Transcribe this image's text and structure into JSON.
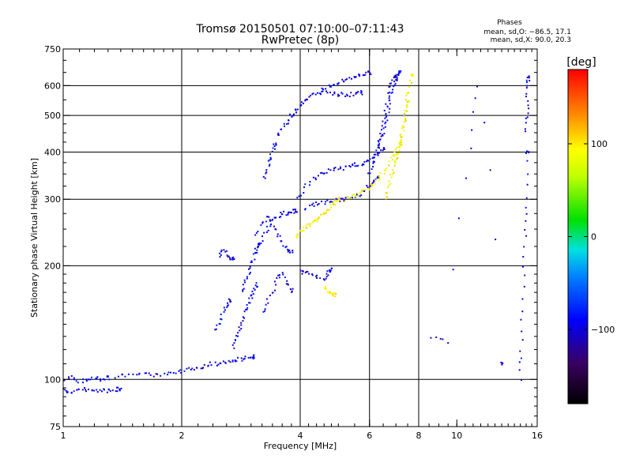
{
  "chart_data": {
    "type": "scatter",
    "title": "Tromsø 20150501 07:10:00–07:11:43",
    "subtitle": "RwPretec (8p)",
    "xlabel": "Frequency [MHz]",
    "ylabel": "Stationary phase Virtual Height [km]",
    "x_scale": "log",
    "y_scale": "log",
    "xlim": [
      1,
      16
    ],
    "ylim": [
      75,
      750
    ],
    "x_ticks": [
      1,
      2,
      4,
      6,
      8,
      10,
      16
    ],
    "x_tick_labels": [
      "1",
      "2",
      "4",
      "6",
      "8",
      "10",
      "16"
    ],
    "y_ticks": [
      75,
      100,
      200,
      300,
      400,
      500,
      600,
      750
    ],
    "y_tick_labels": [
      "75",
      "100",
      "200",
      "300",
      "400",
      "500",
      "600",
      "750"
    ],
    "x_gridlines": [
      2,
      4,
      6,
      8
    ],
    "y_gridlines": [
      100,
      200,
      300,
      400,
      500,
      600
    ],
    "stats": {
      "header": "Phases",
      "line1": "mean, sd,O: −86.5, 17.1",
      "line2": "mean, sd,X:  90.0, 20.3"
    },
    "colorbar": {
      "label": "[deg]",
      "range": [
        -180,
        180
      ],
      "tick_values": [
        100,
        0,
        -100
      ],
      "tick_labels": [
        "100",
        "0",
        "−100"
      ]
    },
    "series": [
      {
        "mode": "O",
        "phase_deg": -95,
        "traces": [
          {
            "f": [
              1.0,
              1.02,
              1.05,
              1.1,
              1.15,
              1.2,
              1.25,
              1.3,
              1.35,
              1.4
            ],
            "h": [
              94,
              93,
              93,
              94,
              94,
              93,
              94,
              93,
              94,
              94
            ]
          },
          {
            "f": [
              1.0,
              1.05,
              1.1,
              1.15,
              1.2,
              1.25,
              1.3
            ],
            "h": [
              100,
              101,
              99,
              100,
              101,
              100,
              101
            ]
          },
          {
            "f": [
              1.35,
              1.45,
              1.55,
              1.65,
              1.75,
              1.85,
              1.95,
              2.05,
              2.15,
              2.25,
              2.35,
              2.45,
              2.55,
              2.65,
              2.75,
              2.85,
              2.95,
              3.05
            ],
            "h": [
              102,
              102,
              103,
              103,
              103,
              104,
              105,
              106,
              107,
              108,
              110,
              110,
              111,
              112,
              113,
              113,
              114,
              115
            ]
          },
          {
            "f": [
              2.45,
              2.5,
              2.55,
              2.6,
              2.65
            ],
            "h": [
              135,
              140,
              150,
              158,
              162
            ]
          },
          {
            "f": [
              2.7,
              2.75,
              2.8,
              2.85,
              2.9,
              2.95,
              3.0,
              3.05,
              3.1
            ],
            "h": [
              122,
              128,
              135,
              140,
              150,
              158,
              165,
              172,
              178
            ]
          },
          {
            "f": [
              2.85,
              2.9,
              2.95,
              3.0,
              3.05,
              3.1,
              3.15
            ],
            "h": [
              170,
              180,
              190,
              200,
              210,
              220,
              230
            ]
          },
          {
            "f": [
              2.5,
              2.55,
              2.6,
              2.65,
              2.7
            ],
            "h": [
              212,
              220,
              215,
              208,
              210
            ]
          },
          {
            "f": [
              3.2,
              3.3,
              3.4,
              3.5,
              3.6,
              3.7,
              3.8
            ],
            "h": [
              150,
              160,
              170,
              185,
              190,
              180,
              172
            ]
          },
          {
            "f": [
              3.1,
              3.2,
              3.3,
              3.4,
              3.5,
              3.6,
              3.7,
              3.8,
              3.9
            ],
            "h": [
              215,
              235,
              250,
              262,
              270,
              274,
              276,
              278,
              280
            ]
          },
          {
            "f": [
              3.1,
              3.2,
              3.3,
              3.4,
              3.5,
              3.6,
              3.7,
              3.8
            ],
            "h": [
              240,
              258,
              270,
              260,
              245,
              230,
              222,
              218
            ]
          },
          {
            "f": [
              3.25,
              3.3,
              3.35,
              3.4,
              3.45
            ],
            "h": [
              340,
              360,
              380,
              400,
              420
            ]
          },
          {
            "f": [
              3.5,
              3.6,
              3.7,
              3.8,
              3.9,
              4.0,
              4.1,
              4.2,
              4.4,
              4.6,
              4.8,
              5.0,
              5.2,
              5.4,
              5.6,
              5.8,
              6.0
            ],
            "h": [
              440,
              460,
              480,
              500,
              515,
              530,
              545,
              560,
              575,
              590,
              600,
              610,
              620,
              630,
              640,
              645,
              650
            ]
          },
          {
            "f": [
              4.5,
              4.7,
              4.9,
              5.1,
              5.3,
              5.5,
              5.7
            ],
            "h": [
              575,
              572,
              570,
              568,
              566,
              570,
              575
            ]
          },
          {
            "f": [
              3.9,
              4.1,
              4.3,
              4.5,
              4.7,
              4.9,
              5.1,
              5.3,
              5.5,
              5.7,
              5.9,
              6.1,
              6.3,
              6.5
            ],
            "h": [
              300,
              320,
              340,
              350,
              355,
              360,
              362,
              365,
              370,
              372,
              376,
              382,
              395,
              410
            ]
          },
          {
            "f": [
              4.1,
              4.3,
              4.5,
              4.7,
              4.9,
              5.1,
              5.3,
              5.5,
              5.7,
              5.9,
              6.1,
              6.3
            ],
            "h": [
              285,
              290,
              292,
              295,
              298,
              300,
              302,
              305,
              310,
              320,
              335,
              345
            ]
          },
          {
            "f": [
              4.0,
              4.1,
              4.2,
              4.4,
              4.6,
              4.7,
              4.8
            ],
            "h": [
              195,
              190,
              192,
              188,
              185,
              192,
              195
            ]
          },
          {
            "f": [
              6.0,
              6.1,
              6.2,
              6.3,
              6.4,
              6.5,
              6.6,
              6.7,
              6.8,
              6.9,
              7.0,
              7.1,
              7.2
            ],
            "h": [
              350,
              370,
              390,
              410,
              430,
              450,
              480,
              520,
              560,
              600,
              620,
              640,
              650
            ]
          },
          {
            "f": [
              6.3,
              6.4,
              6.5,
              6.6,
              6.7,
              6.8,
              6.9,
              7.0
            ],
            "h": [
              400,
              440,
              480,
              520,
              560,
              600,
              620,
              640
            ]
          },
          {
            "f": [
              14.5,
              14.6,
              14.7,
              14.8,
              14.9,
              15.0,
              15.1
            ],
            "h": [
              100,
              120,
              150,
              200,
              250,
              300,
              400
            ]
          },
          {
            "f": [
              15.0,
              15.05,
              15.1,
              15.15,
              15.2
            ],
            "h": [
              450,
              500,
              550,
              600,
              630
            ]
          },
          {
            "f": [
              8.6,
              9.5,
              10.8,
              11.2,
              13.0
            ],
            "h": [
              130,
              125,
              410,
              600,
              110
            ]
          }
        ]
      },
      {
        "mode": "X",
        "phase_deg": 95,
        "traces": [
          {
            "f": [
              3.9,
              4.0,
              4.1,
              4.2,
              4.3,
              4.4,
              4.5,
              4.6,
              4.7,
              4.8,
              4.9,
              5.0
            ],
            "h": [
              240,
              245,
              250,
              255,
              260,
              265,
              270,
              275,
              282,
              290,
              295,
              300
            ]
          },
          {
            "f": [
              4.6,
              4.7,
              4.8,
              4.9
            ],
            "h": [
              175,
              172,
              170,
              168
            ]
          },
          {
            "f": [
              5.2,
              5.4,
              5.6,
              5.8,
              6.0,
              6.2,
              6.4,
              6.6,
              6.8,
              7.0,
              7.2
            ],
            "h": [
              300,
              305,
              310,
              315,
              320,
              330,
              345,
              360,
              380,
              400,
              420
            ]
          },
          {
            "f": [
              6.6,
              6.7,
              6.8,
              6.9,
              7.0,
              7.1,
              7.2,
              7.3,
              7.4,
              7.5
            ],
            "h": [
              300,
              320,
              340,
              360,
              380,
              400,
              430,
              460,
              500,
              550
            ]
          },
          {
            "f": [
              7.0,
              7.1,
              7.2,
              7.3,
              7.4,
              7.5,
              7.6,
              7.7
            ],
            "h": [
              380,
              400,
              430,
              470,
              510,
              560,
              600,
              640
            ]
          }
        ]
      }
    ]
  }
}
